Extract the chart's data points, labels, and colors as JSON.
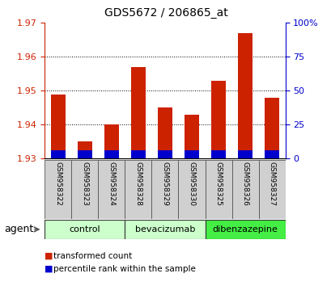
{
  "title": "GDS5672 / 206865_at",
  "samples": [
    "GSM958322",
    "GSM958323",
    "GSM958324",
    "GSM958328",
    "GSM958329",
    "GSM958330",
    "GSM958325",
    "GSM958326",
    "GSM958327"
  ],
  "transformed_counts": [
    1.949,
    1.935,
    1.94,
    1.957,
    1.945,
    1.943,
    1.953,
    1.967,
    1.948
  ],
  "percentile_ranks": [
    7,
    8,
    5,
    9,
    10,
    10,
    8,
    7,
    6
  ],
  "ylim_left": [
    1.93,
    1.97
  ],
  "ylim_right": [
    0,
    100
  ],
  "yticks_left": [
    1.93,
    1.94,
    1.95,
    1.96,
    1.97
  ],
  "yticks_right": [
    0,
    25,
    50,
    75,
    100
  ],
  "groups": [
    {
      "label": "control",
      "indices": [
        0,
        1,
        2
      ],
      "color": "#ccffcc"
    },
    {
      "label": "bevacizumab",
      "indices": [
        3,
        4,
        5
      ],
      "color": "#ccffcc"
    },
    {
      "label": "dibenzazepine",
      "indices": [
        6,
        7,
        8
      ],
      "color": "#44ee44"
    }
  ],
  "bar_width": 0.55,
  "red_color": "#cc2200",
  "blue_color": "#0000cc",
  "base_value": 1.93,
  "blue_bar_height": 0.0025,
  "bg_plot": "#ffffff",
  "title_color": "#000000",
  "left_axis_color": "#cc2200",
  "right_axis_color": "#0000cc",
  "legend_red_label": "transformed count",
  "legend_blue_label": "percentile rank within the sample",
  "agent_label": "agent"
}
